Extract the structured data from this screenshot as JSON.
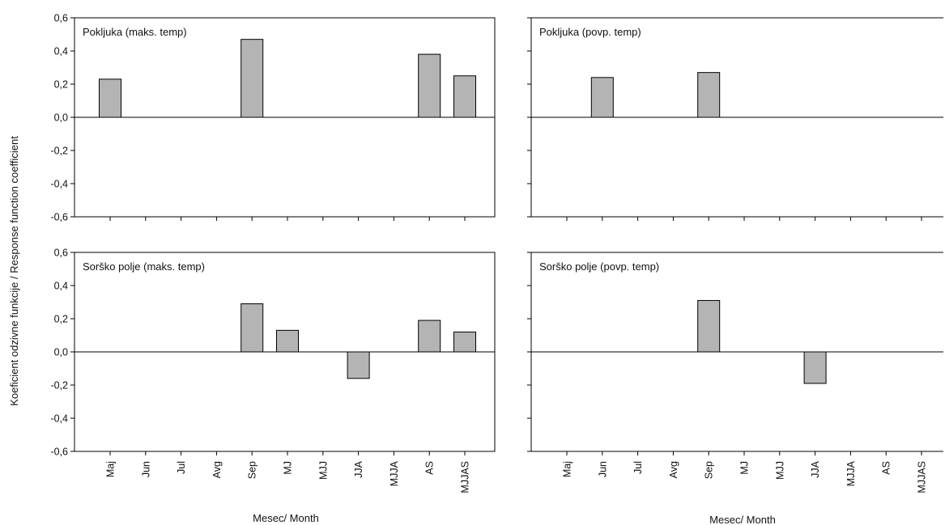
{
  "chart_data": [
    {
      "type": "bar",
      "title": "Pokljuka (maks. temp)",
      "categories": [
        "Maj",
        "Jun",
        "Jul",
        "Avg",
        "Sep",
        "MJ",
        "MJJ",
        "JJA",
        "MJJA",
        "AS",
        "MJJAS"
      ],
      "values": [
        0.23,
        0,
        0,
        0,
        0.47,
        0,
        0,
        0,
        0,
        0.38,
        0.25
      ],
      "ylim": [
        -0.6,
        0.6
      ],
      "yticks": [
        "0,6",
        "0,4",
        "0,2",
        "0,0",
        "-0,2",
        "-0,4",
        "-0,6"
      ],
      "bar_color": "#b4b4b4"
    },
    {
      "type": "bar",
      "title": "Pokljuka (povp. temp)",
      "categories": [
        "Maj",
        "Jun",
        "Jul",
        "Avg",
        "Sep",
        "MJ",
        "MJJ",
        "JJA",
        "MJJA",
        "AS",
        "MJJAS"
      ],
      "values": [
        0,
        0.24,
        0,
        0,
        0.27,
        0,
        0,
        0,
        0,
        0,
        0
      ],
      "ylim": [
        -0.6,
        0.6
      ],
      "bar_color": "#b4b4b4"
    },
    {
      "type": "bar",
      "title": "Sorško polje (maks. temp)",
      "categories": [
        "Maj",
        "Jun",
        "Jul",
        "Avg",
        "Sep",
        "MJ",
        "MJJ",
        "JJA",
        "MJJA",
        "AS",
        "MJJAS"
      ],
      "values": [
        0,
        0,
        0,
        0,
        0.29,
        0.13,
        0,
        -0.16,
        0,
        0.19,
        0.12
      ],
      "ylim": [
        -0.6,
        0.6
      ],
      "yticks": [
        "0,6",
        "0,4",
        "0,2",
        "0,0",
        "-0,2",
        "-0,4",
        "-0,6"
      ],
      "bar_color": "#b4b4b4"
    },
    {
      "type": "bar",
      "title": "Sorško polje (povp. temp)",
      "categories": [
        "Maj",
        "Jun",
        "Jul",
        "Avg",
        "Sep",
        "MJ",
        "MJJ",
        "JJA",
        "MJJA",
        "AS",
        "MJJAS"
      ],
      "values": [
        0,
        0,
        0,
        0,
        0.31,
        0,
        0,
        -0.19,
        0,
        0,
        0
      ],
      "ylim": [
        -0.6,
        0.6
      ],
      "bar_color": "#b4b4b4"
    }
  ],
  "axes": {
    "ylabel": "Koeficient odzivne funkcije / Response function coefficient",
    "xlabel_left": "Mesec/ Month",
    "xlabel_right": "Mesec/ Month"
  }
}
